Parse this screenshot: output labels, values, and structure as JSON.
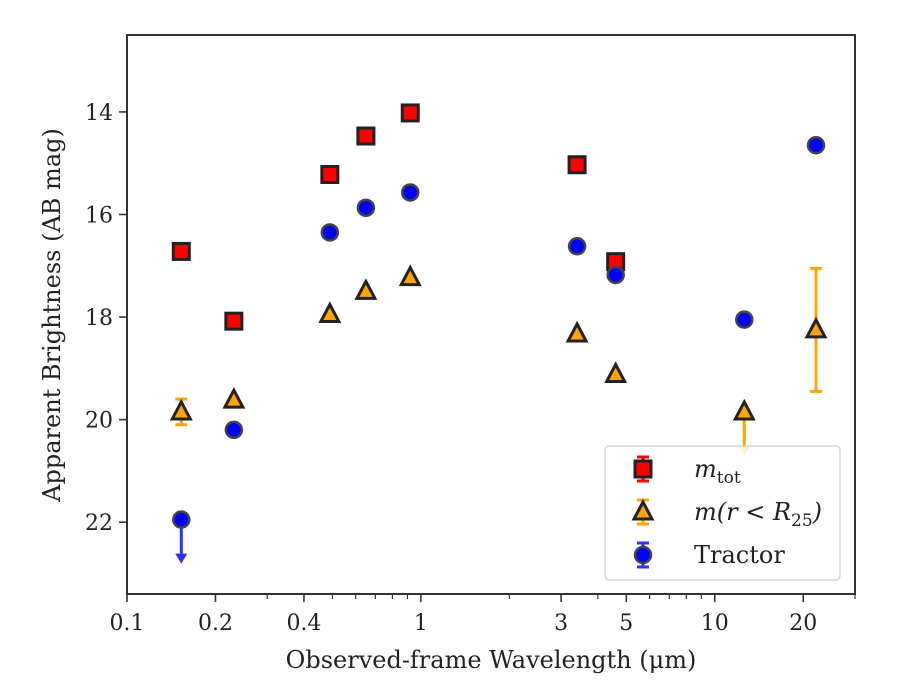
{
  "chart_data": {
    "type": "scatter",
    "title": "",
    "xlabel": "Observed-frame Wavelength (μm)",
    "ylabel": "Apparent Brightness (AB mag)",
    "xscale": "log",
    "xlim": [
      0.1,
      30
    ],
    "ylim": [
      23.4,
      12.5
    ],
    "y_inverted": true,
    "xticks": [
      0.1,
      0.2,
      0.4,
      1,
      3,
      5,
      10,
      20
    ],
    "xtick_labels": [
      "0.1",
      "0.2",
      "0.4",
      "1",
      "3",
      "5",
      "10",
      "20"
    ],
    "yticks": [
      14,
      16,
      18,
      20,
      22
    ],
    "ytick_labels": [
      "14",
      "16",
      "18",
      "20",
      "22"
    ],
    "grid": false,
    "legend_position": "bottom-right",
    "series": [
      {
        "name": "m_tot",
        "legend_label": "m",
        "legend_subscript": "tot",
        "marker": "square",
        "color": "#ff0000",
        "points": [
          {
            "x": 0.153,
            "y": 16.72
          },
          {
            "x": 0.231,
            "y": 18.08
          },
          {
            "x": 0.49,
            "y": 15.22
          },
          {
            "x": 0.65,
            "y": 14.47
          },
          {
            "x": 0.92,
            "y": 14.02
          },
          {
            "x": 3.4,
            "y": 15.03
          },
          {
            "x": 4.6,
            "y": 16.92
          }
        ]
      },
      {
        "name": "m(r < R_25)",
        "legend_label": "m(r < R",
        "legend_subscript": "25",
        "legend_suffix": ")",
        "marker": "triangle",
        "color": "#ffa500",
        "errcolor": "#ffa500",
        "points": [
          {
            "x": 0.153,
            "y": 19.85,
            "err": 0.25
          },
          {
            "x": 0.231,
            "y": 19.62
          },
          {
            "x": 0.49,
            "y": 17.95
          },
          {
            "x": 0.65,
            "y": 17.5
          },
          {
            "x": 0.92,
            "y": 17.23
          },
          {
            "x": 3.4,
            "y": 18.33
          },
          {
            "x": 4.6,
            "y": 19.12
          },
          {
            "x": 12.6,
            "y": 19.85,
            "upper_limit": true
          },
          {
            "x": 22.1,
            "y": 18.25,
            "err": 1.2
          }
        ]
      },
      {
        "name": "Tractor",
        "legend_label": "Tractor",
        "marker": "circle",
        "color": "#0000ff",
        "errcolor": "#2f2fff",
        "points": [
          {
            "x": 0.153,
            "y": 21.95,
            "upper_limit": true
          },
          {
            "x": 0.231,
            "y": 20.2
          },
          {
            "x": 0.49,
            "y": 16.35
          },
          {
            "x": 0.65,
            "y": 15.87
          },
          {
            "x": 0.92,
            "y": 15.57
          },
          {
            "x": 3.4,
            "y": 16.62
          },
          {
            "x": 4.6,
            "y": 17.18
          },
          {
            "x": 12.6,
            "y": 18.05
          },
          {
            "x": 22.1,
            "y": 14.65
          }
        ]
      }
    ]
  }
}
